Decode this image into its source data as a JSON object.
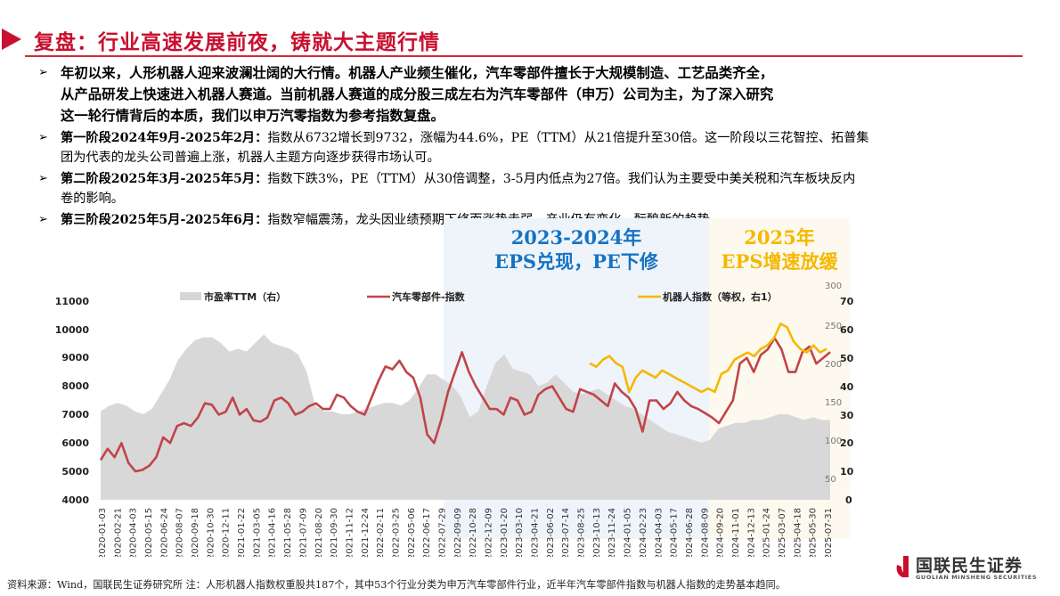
{
  "header": {
    "title": "复盘：行业高速发展前夜，铸就大主题行情"
  },
  "bullets": [
    {
      "lead": "",
      "text": "年初以来，人形机器人迎来波澜壮阔的大行情。机器人产业频生催化，汽车零部件擅长于大规模制造、工艺品类齐全，从产品研发上快速进入机器人赛道。当前机器人赛道的成分股三成左右为汽车零部件（申万）公司为主，为了深入研究这一轮行情背后的本质，我们以申万汽零指数为参考指数复盘。",
      "line1": "年初以来，人形机器人迎来波澜壮阔的大行情。机器人产业频生催化，汽车零部件擅长于大规模制造、工艺品类齐全，",
      "line2": "从产品研发上快速进入机器人赛道。当前机器人赛道的成分股三成左右为汽车零部件（申万）公司为主，为了深入研究",
      "line3": "这一轮行情背后的本质，我们以申万汽零指数为参考指数复盘。"
    },
    {
      "lead": "第一阶段2024年9月-2025年2月：",
      "line1": "指数从6732增长到9732，涨幅为44.6%，PE（TTM）从21倍提升至30倍。这一阶段以三花智控、拓普集",
      "line2": "团为代表的龙头公司普遍上涨，机器人主题方向逐步获得市场认可。"
    },
    {
      "lead": "第二阶段2025年3月-2025年5月：",
      "line1": "指数下跌3%，PE（TTM）从30倍调整，3-5月内低点为27倍。我们认为主要受中美关税和汽车板块反内",
      "line2": "卷的影响。"
    },
    {
      "lead": "第三阶段2025年5月-2025年6月：",
      "line1": "指数窄幅震荡，龙头因业绩预期下修而涨势走弱，产业仍有变化，酝酿新的趋势。"
    }
  ],
  "bands": {
    "blue": {
      "line1": "2023-2024年",
      "line2": "EPS兑现，PE下修",
      "color": "#1773c2",
      "bg": "#eef4fa"
    },
    "yellow": {
      "line1": "2025年",
      "line2": "EPS增速放缓",
      "color": "#f5b800",
      "bg": "#fdf9ee"
    }
  },
  "legend": {
    "pe": "市盈率TTM（右）",
    "auto": "汽车零部件-指数",
    "robot": "机器人指数（等权，右1）"
  },
  "footer": {
    "source": "资料来源：Wind，国联民生证券研究所 注：人形机器人指数权重股共187个，其中53个行业分类为申万汽车零部件行业，近半年汽车零部件指数与机器人指数的走势基本趋同。",
    "logo_cn": "国联民生证券",
    "logo_en": "GUOLIAN MINSHENG SECURITIES"
  },
  "colors": {
    "brand_red": "#c8102e",
    "auto_line": "#c0444a",
    "robot_line": "#f5b800",
    "pe_area": "#d6d6d6"
  },
  "chart_data": {
    "type": "line",
    "title": "",
    "xlabel": "",
    "ylabel": "",
    "left_axis": {
      "ticks": [
        4000,
        5000,
        6000,
        7000,
        8000,
        9000,
        10000,
        11000
      ],
      "ylim": [
        4000,
        11000
      ]
    },
    "right_axis_1": {
      "ticks": [
        50,
        100,
        150,
        200,
        250,
        300
      ],
      "label": "机器人指数（等权，右1）"
    },
    "right_axis_2": {
      "ticks": [
        0,
        10,
        20,
        30,
        40,
        50,
        60,
        70
      ],
      "ylim": [
        0,
        70
      ],
      "label": "市盈率TTM（右）"
    },
    "x_tick_labels": [
      "2020-01-03",
      "2020-02-21",
      "2020-04-03",
      "2020-05-15",
      "2020-06-24",
      "2020-08-07",
      "2020-09-18",
      "2020-10-30",
      "2020-12-11",
      "2021-01-22",
      "2021-03-05",
      "2021-04-16",
      "2021-05-28",
      "2021-07-09",
      "2021-08-20",
      "2021-09-30",
      "2021-11-12",
      "2021-12-24",
      "2022-02-11",
      "2022-03-25",
      "2022-05-06",
      "2022-06-17",
      "2022-07-29",
      "2022-09-09",
      "2022-10-28",
      "2022-12-09",
      "2023-01-20",
      "2023-03-10",
      "2023-04-21",
      "2023-06-02",
      "2023-07-14",
      "2023-08-25",
      "2023-10-13",
      "2023-11-24",
      "2024-01-05",
      "2024-02-23",
      "2024-04-03",
      "2024-05-17",
      "2024-06-28",
      "2024-08-09",
      "2024-09-20",
      "2024-11-01",
      "2024-12-13",
      "2025-01-24",
      "2025-03-07",
      "2025-04-18",
      "2025-05-30",
      "2025-07-31"
    ],
    "series": [
      {
        "name": "汽车零部件-指数",
        "axis": "left",
        "values": [
          5400,
          5800,
          5500,
          6000,
          5300,
          5000,
          5050,
          5200,
          5500,
          6200,
          6000,
          6600,
          6700,
          6600,
          6900,
          7400,
          7350,
          7000,
          7100,
          7600,
          7000,
          7200,
          6800,
          6750,
          6900,
          7500,
          7600,
          7400,
          7000,
          7100,
          7300,
          7400,
          7200,
          7200,
          7700,
          7600,
          7300,
          7100,
          7000,
          7600,
          8200,
          8700,
          8600,
          8900,
          8500,
          8300,
          7600,
          6300,
          6000,
          6800,
          7800,
          8500,
          9200,
          8500,
          8000,
          7600,
          7200,
          7200,
          7000,
          7600,
          7500,
          7000,
          7100,
          7700,
          7900,
          8000,
          7600,
          7200,
          7100,
          7900,
          7800,
          7700,
          7500,
          7300,
          8100,
          7800,
          7600,
          7200,
          6400,
          7500,
          7500,
          7200,
          7400,
          7800,
          7500,
          7300,
          7200,
          7050,
          6900,
          6700,
          7100,
          7500,
          8800,
          9000,
          8500,
          9100,
          9300,
          9700,
          9300,
          8500,
          8500,
          9200,
          9400,
          8800,
          9000,
          9200
        ]
      },
      {
        "name": "机器人指数（等权，右1）",
        "axis": "right_1",
        "start": "2023-09",
        "values": [
          190,
          185,
          195,
          200,
          190,
          185,
          150,
          170,
          180,
          175,
          170,
          180,
          175,
          170,
          165,
          160,
          155,
          150,
          155,
          150,
          175,
          180,
          195,
          200,
          205,
          200,
          210,
          215,
          225,
          245,
          240,
          220,
          210,
          205,
          215,
          205,
          210
        ]
      },
      {
        "name": "市盈率TTM（右）",
        "axis": "right_2",
        "type": "area",
        "values": [
          31,
          33,
          34,
          33,
          31,
          30,
          32,
          37,
          42,
          49,
          53,
          56,
          57,
          57,
          55,
          52,
          53,
          52,
          55,
          58,
          55,
          54,
          53,
          51,
          45,
          33,
          31,
          31,
          30,
          30,
          31,
          32,
          33,
          34,
          34,
          33,
          35,
          39,
          44,
          44,
          42,
          40,
          36,
          29,
          31,
          40,
          48,
          51,
          46,
          45,
          44,
          40,
          41,
          44,
          41,
          38,
          37,
          38,
          39,
          37,
          35,
          33,
          32,
          30,
          28,
          26,
          24,
          23,
          22,
          21,
          20,
          21,
          25,
          26,
          27,
          27,
          28,
          28,
          29,
          30,
          30,
          29,
          28,
          29,
          28,
          28
        ]
      }
    ]
  }
}
